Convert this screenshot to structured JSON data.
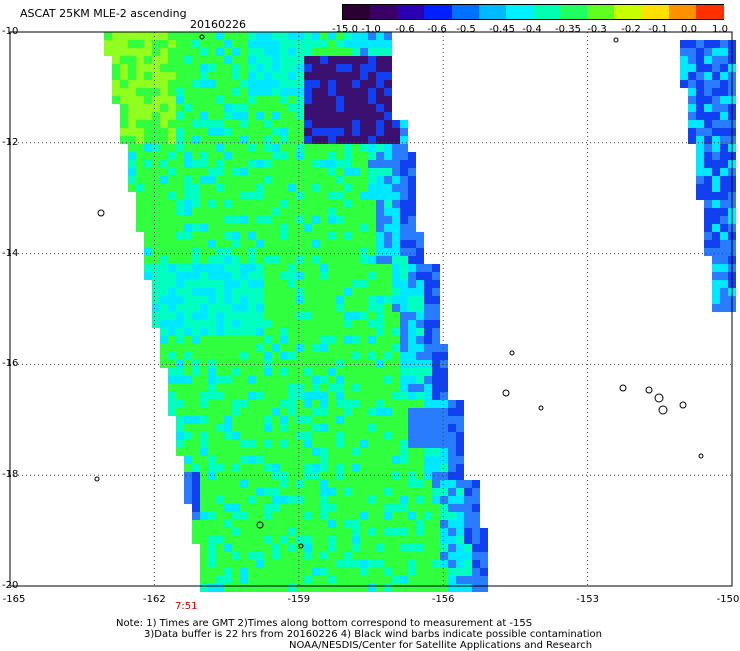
{
  "header": {
    "title": "ASCAT 25KM MLE-2 ascending",
    "date": "20160226"
  },
  "colorbar": {
    "labels": [
      "-15.0",
      "-1.0",
      "-0.6",
      "-0.6",
      "-0.5",
      "-0.45",
      "-0.4",
      "-0.35",
      "-0.3",
      "-0.2",
      "-0.1",
      "0.0",
      "1.0"
    ],
    "colors": [
      "#2a0030",
      "#3a0066",
      "#2a00b0",
      "#0020ff",
      "#0070ff",
      "#00b8ff",
      "#00f0ff",
      "#00ffb0",
      "#20ff60",
      "#60ff20",
      "#c8ff00",
      "#ffe000",
      "#ff9000",
      "#ff3000"
    ]
  },
  "axes": {
    "lat_labels": [
      "-10",
      "-12",
      "-14",
      "-16",
      "-18",
      "-20"
    ],
    "lon_labels": [
      "-165",
      "-162",
      "-159",
      "-156",
      "-153",
      "-150"
    ],
    "time_label": "7:51"
  },
  "notes": {
    "line1": "Note: 1) Times are GMT 2)Times along bottom correspond to measurement at -15S",
    "line2": "3)Data buffer is 22 hrs from 20160226 4) Black wind barbs indicate possible contamination",
    "line3": "NOAA/NESDIS/Center for Satellite Applications and Research"
  },
  "map": {
    "lat_range": [
      -20,
      -10
    ],
    "lon_range": [
      -165,
      -150
    ],
    "grid": true,
    "palette": {
      "deep_purple": "#3a1070",
      "blue": "#1040f0",
      "mid_blue": "#2a7cff",
      "cyan": "#00e8ff",
      "teal": "#00ffc0",
      "green": "#30ff40",
      "lime": "#90ff20"
    }
  }
}
